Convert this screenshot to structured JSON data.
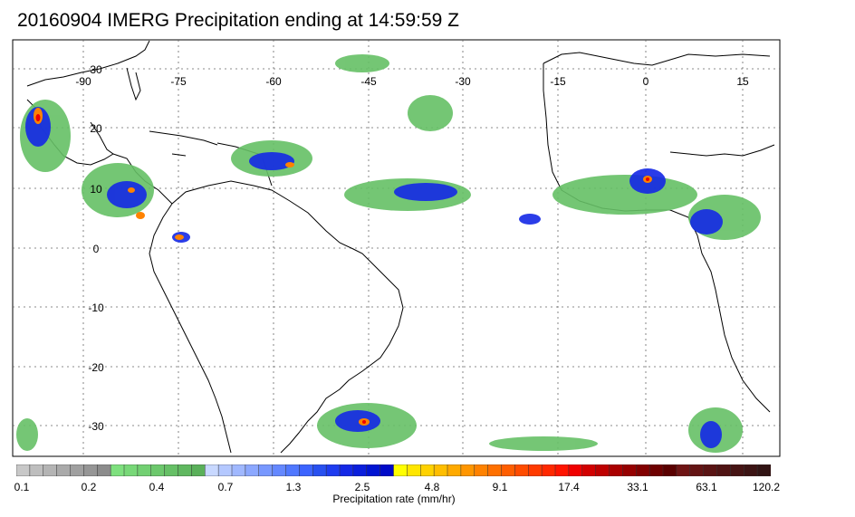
{
  "title": "20160904 IMERG Precipitation ending at 14:59:59 Z",
  "map": {
    "lon_labels": [
      "-90",
      "-75",
      "-60",
      "-45",
      "-30",
      "-15",
      "0",
      "15"
    ],
    "lat_labels": [
      "30",
      "20",
      "10",
      "0",
      "-10",
      "-20",
      "-30"
    ],
    "grid": true,
    "ocean_color": "#ffffff",
    "coastline_color": "#000000"
  },
  "colorbar": {
    "caption": "Precipitation rate (mm/hr)",
    "tick_labels": [
      "0.1",
      "0.2",
      "0.4",
      "0.7",
      "1.3",
      "2.5",
      "4.8",
      "9.1",
      "17.4",
      "33.1",
      "63.1",
      "120.2"
    ],
    "colors": [
      "#c8c8c8",
      "#bebebe",
      "#b4b4b4",
      "#aaaaaa",
      "#a0a0a0",
      "#969696",
      "#8c8c8c",
      "#7ee07e",
      "#78d878",
      "#72d072",
      "#6cc86c",
      "#66c066",
      "#60b860",
      "#5ab05a",
      "#c8d8ff",
      "#b4c8ff",
      "#a0b8ff",
      "#8ca8ff",
      "#7898ff",
      "#6488ff",
      "#5078ff",
      "#3c64ff",
      "#2850f0",
      "#1e3cf0",
      "#1428e6",
      "#0a1edc",
      "#0014d2",
      "#000ac8",
      "#ffff00",
      "#ffe600",
      "#ffd200",
      "#ffbe00",
      "#ffaa00",
      "#ff9600",
      "#ff8200",
      "#ff7000",
      "#ff5e00",
      "#ff4c00",
      "#ff3a00",
      "#ff2800",
      "#ff1400",
      "#f00000",
      "#d20000",
      "#be0000",
      "#aa0000",
      "#960000",
      "#820000",
      "#6e0000",
      "#5a0000",
      "#6e1414",
      "#641414",
      "#5a1414",
      "#501414",
      "#461414",
      "#3c1414",
      "#321414"
    ]
  }
}
